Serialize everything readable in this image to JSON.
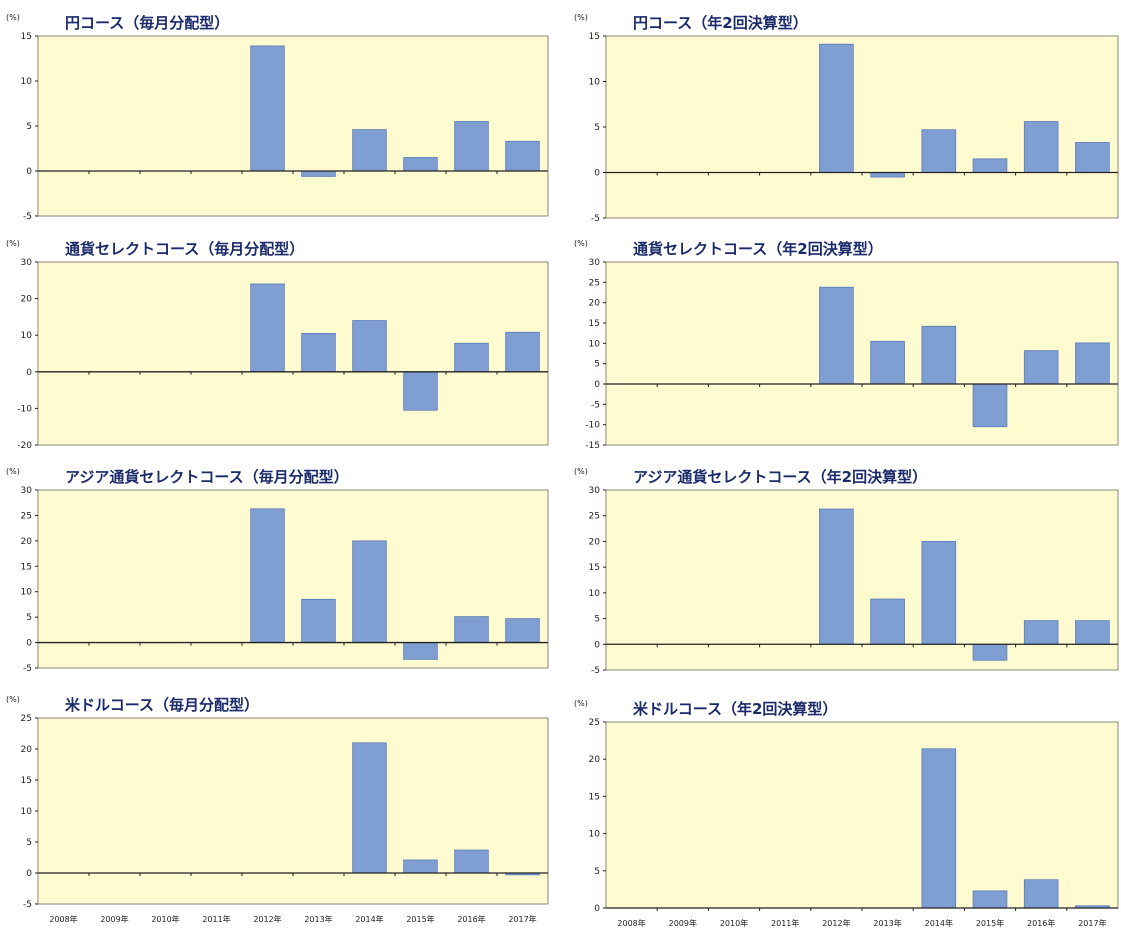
{
  "colors": {
    "plot_bg": "#fffbd0",
    "bar": "#7f9fd3",
    "bar_edge": "#5a7ab8",
    "axis": "#222222"
  },
  "chart_data": [
    {
      "type": "bar",
      "title": "円コース（毎月分配型）",
      "unit": "(%)",
      "categories": [
        "2008年",
        "2009年",
        "2010年",
        "2011年",
        "2012年",
        "2013年",
        "2014年",
        "2015年",
        "2016年",
        "2017年"
      ],
      "values": [
        null,
        null,
        null,
        null,
        13.9,
        -0.6,
        4.6,
        1.5,
        5.5,
        3.3
      ],
      "ylim": [
        -5,
        15
      ],
      "yticks": [
        -5,
        0,
        5,
        10,
        15
      ],
      "show_xlabels": false
    },
    {
      "type": "bar",
      "title": "円コース（年2回決算型）",
      "unit": "(%)",
      "categories": [
        "2008年",
        "2009年",
        "2010年",
        "2011年",
        "2012年",
        "2013年",
        "2014年",
        "2015年",
        "2016年",
        "2017年"
      ],
      "values": [
        null,
        null,
        null,
        null,
        14.1,
        -0.5,
        4.7,
        1.5,
        5.6,
        3.3
      ],
      "ylim": [
        -5,
        15
      ],
      "yticks": [
        -5,
        0,
        5,
        10,
        15
      ],
      "show_xlabels": false
    },
    {
      "type": "bar",
      "title": "通貨セレクトコース（毎月分配型）",
      "unit": "(%)",
      "categories": [
        "2008年",
        "2009年",
        "2010年",
        "2011年",
        "2012年",
        "2013年",
        "2014年",
        "2015年",
        "2016年",
        "2017年"
      ],
      "values": [
        null,
        null,
        null,
        null,
        24.0,
        10.5,
        14.0,
        -10.5,
        7.8,
        10.8
      ],
      "ylim": [
        -20,
        30
      ],
      "yticks": [
        -20,
        -10,
        0,
        10,
        20,
        30
      ],
      "show_xlabels": false
    },
    {
      "type": "bar",
      "title": "通貨セレクトコース（年2回決算型）",
      "unit": "(%)",
      "categories": [
        "2008年",
        "2009年",
        "2010年",
        "2011年",
        "2012年",
        "2013年",
        "2014年",
        "2015年",
        "2016年",
        "2017年"
      ],
      "values": [
        null,
        null,
        null,
        null,
        23.8,
        10.5,
        14.2,
        -10.5,
        8.2,
        10.1
      ],
      "ylim": [
        -15,
        30
      ],
      "yticks": [
        -15,
        -10,
        -5,
        0,
        5,
        10,
        15,
        20,
        25,
        30
      ],
      "show_xlabels": false
    },
    {
      "type": "bar",
      "title": "アジア通貨セレクトコース（毎月分配型）",
      "unit": "(%)",
      "categories": [
        "2008年",
        "2009年",
        "2010年",
        "2011年",
        "2012年",
        "2013年",
        "2014年",
        "2015年",
        "2016年",
        "2017年"
      ],
      "values": [
        null,
        null,
        null,
        null,
        26.3,
        8.5,
        20.0,
        -3.3,
        5.1,
        4.7
      ],
      "ylim": [
        -5,
        30
      ],
      "yticks": [
        -5,
        0,
        5,
        10,
        15,
        20,
        25,
        30
      ],
      "show_xlabels": false
    },
    {
      "type": "bar",
      "title": "アジア通貨セレクトコース（年2回決算型）",
      "unit": "(%)",
      "categories": [
        "2008年",
        "2009年",
        "2010年",
        "2011年",
        "2012年",
        "2013年",
        "2014年",
        "2015年",
        "2016年",
        "2017年"
      ],
      "values": [
        null,
        null,
        null,
        null,
        26.3,
        8.8,
        20.0,
        -3.1,
        4.6,
        4.6
      ],
      "ylim": [
        -5,
        30
      ],
      "yticks": [
        -5,
        0,
        5,
        10,
        15,
        20,
        25,
        30
      ],
      "show_xlabels": false
    },
    {
      "type": "bar",
      "title": "米ドルコース（毎月分配型）",
      "unit": "(%)",
      "categories": [
        "2008年",
        "2009年",
        "2010年",
        "2011年",
        "2012年",
        "2013年",
        "2014年",
        "2015年",
        "2016年",
        "2017年"
      ],
      "values": [
        null,
        null,
        null,
        null,
        null,
        null,
        21.0,
        2.1,
        3.7,
        -0.3
      ],
      "ylim": [
        -5,
        25
      ],
      "yticks": [
        -5,
        0,
        5,
        10,
        15,
        20,
        25
      ],
      "show_xlabels": true
    },
    {
      "type": "bar",
      "title": "米ドルコース（年2回決算型）",
      "unit": "(%)",
      "categories": [
        "2008年",
        "2009年",
        "2010年",
        "2011年",
        "2012年",
        "2013年",
        "2014年",
        "2015年",
        "2016年",
        "2017年"
      ],
      "values": [
        null,
        null,
        null,
        null,
        null,
        null,
        21.4,
        2.3,
        3.8,
        0.3
      ],
      "ylim": [
        0,
        25
      ],
      "yticks": [
        0,
        5,
        10,
        15,
        20,
        25
      ],
      "show_xlabels": true
    }
  ]
}
